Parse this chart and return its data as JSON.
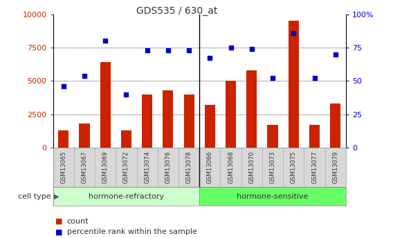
{
  "title": "GDS535 / 630_at",
  "samples": [
    "GSM13065",
    "GSM13067",
    "GSM13069",
    "GSM13072",
    "GSM13074",
    "GSM13076",
    "GSM13078",
    "GSM13066",
    "GSM13068",
    "GSM13070",
    "GSM13073",
    "GSM13075",
    "GSM13077",
    "GSM13079"
  ],
  "bar_values": [
    1300,
    1800,
    6400,
    1300,
    4000,
    4300,
    4000,
    3200,
    5000,
    5800,
    1700,
    9500,
    1700,
    3300
  ],
  "dot_values": [
    46,
    54,
    80,
    40,
    73,
    73,
    73,
    67,
    75,
    74,
    52,
    86,
    52,
    70
  ],
  "bar_color": "#cc2200",
  "dot_color": "#0000cc",
  "left_ylim": [
    0,
    10000
  ],
  "right_ylim": [
    0,
    100
  ],
  "left_yticks": [
    0,
    2500,
    5000,
    7500,
    10000
  ],
  "right_yticks": [
    0,
    25,
    50,
    75,
    100
  ],
  "right_yticklabels": [
    "0",
    "25",
    "50",
    "75",
    "100%"
  ],
  "group1_label": "hormone-refractory",
  "group2_label": "hormone-sensitive",
  "group1_n": 7,
  "group2_n": 7,
  "group1_color": "#ccffcc",
  "group2_color": "#66ff66",
  "cell_type_label": "cell type",
  "legend_bar_label": "count",
  "legend_dot_label": "percentile rank within the sample",
  "xtick_bg_color": "#d8d8d8",
  "plot_bg": "#ffffff",
  "grid_color": "#000000",
  "title_color": "#333333",
  "left_tick_color": "#cc2200",
  "right_tick_color": "#0000cc",
  "sep_color": "#000000"
}
